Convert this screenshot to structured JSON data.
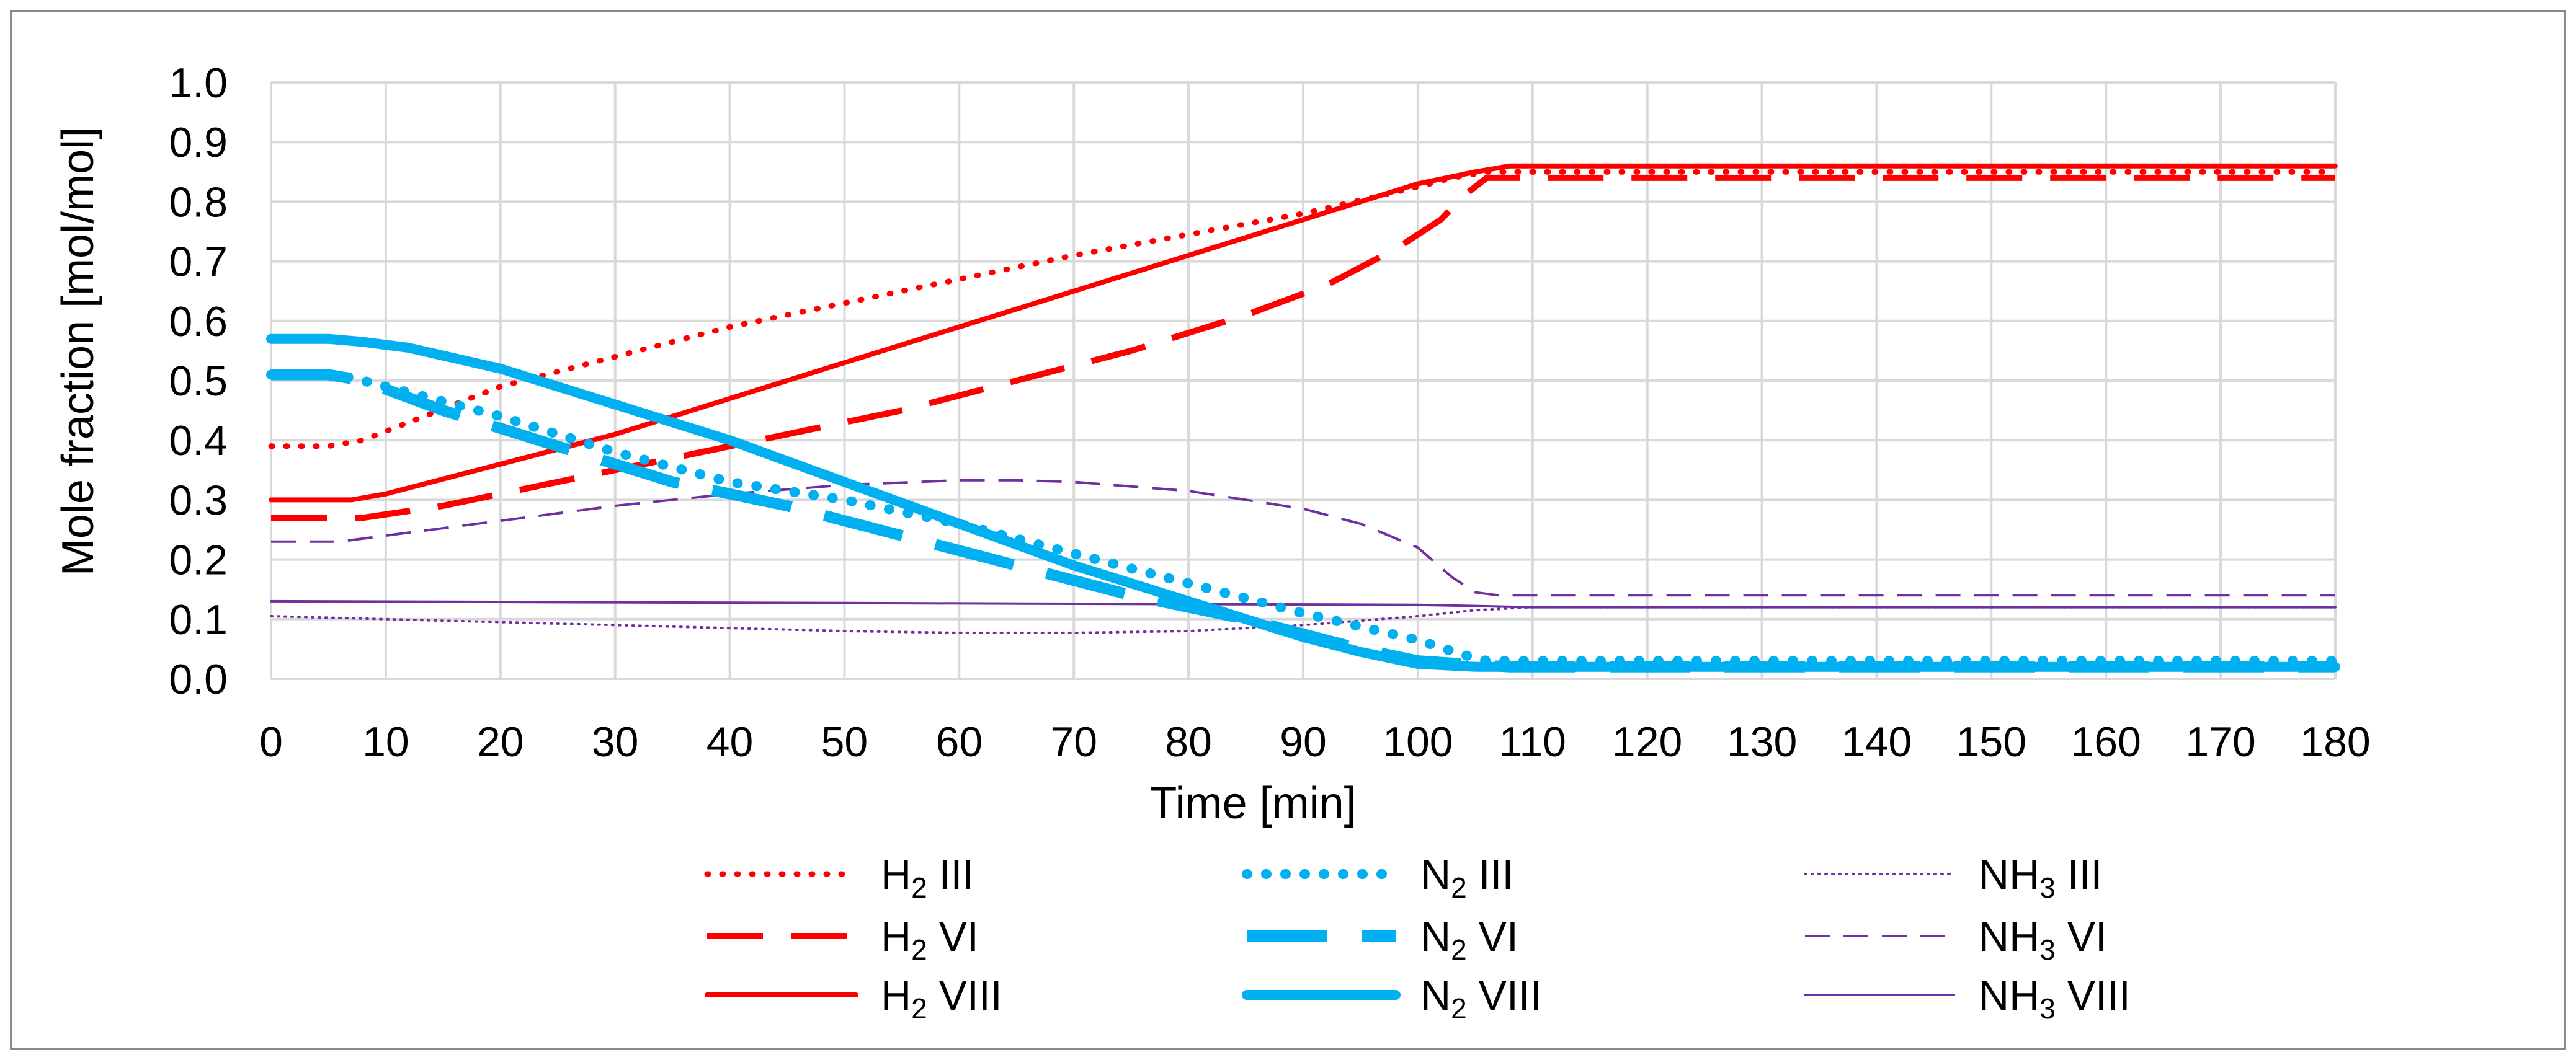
{
  "chart_data": {
    "type": "line",
    "xlabel": "Time [min]",
    "ylabel": "Mole fraction [mol/mol]",
    "xlim": [
      0,
      180
    ],
    "ylim": [
      0,
      1.0
    ],
    "xticks": [
      0,
      10,
      20,
      30,
      40,
      50,
      60,
      70,
      80,
      90,
      100,
      110,
      120,
      130,
      140,
      150,
      160,
      170,
      180
    ],
    "yticks": [
      0.0,
      0.1,
      0.2,
      0.3,
      0.4,
      0.5,
      0.6,
      0.7,
      0.8,
      0.9,
      1.0
    ],
    "grid": true,
    "legend_position": "bottom",
    "series": [
      {
        "name": "H2 III",
        "base": "H",
        "sub": "2",
        "suffix": " III",
        "color": "#ff0000",
        "style": "dotted",
        "x": [
          0,
          5,
          8,
          12,
          20,
          30,
          40,
          50,
          60,
          70,
          80,
          90,
          100,
          103,
          106,
          108,
          120,
          140,
          160,
          180
        ],
        "y": [
          0.39,
          0.39,
          0.4,
          0.43,
          0.49,
          0.54,
          0.59,
          0.63,
          0.67,
          0.71,
          0.745,
          0.78,
          0.825,
          0.84,
          0.85,
          0.85,
          0.85,
          0.85,
          0.85,
          0.85
        ]
      },
      {
        "name": "H2 VI",
        "base": "H",
        "sub": "2",
        "suffix": " VI",
        "color": "#ff0000",
        "style": "longdash",
        "x": [
          0,
          8,
          15,
          25,
          35,
          45,
          55,
          65,
          75,
          85,
          92,
          98,
          102,
          104,
          106,
          108,
          120,
          140,
          160,
          180
        ],
        "y": [
          0.27,
          0.27,
          0.29,
          0.33,
          0.37,
          0.41,
          0.45,
          0.5,
          0.55,
          0.61,
          0.66,
          0.72,
          0.77,
          0.81,
          0.84,
          0.84,
          0.84,
          0.84,
          0.84,
          0.84
        ]
      },
      {
        "name": "H2 VIII",
        "base": "H",
        "sub": "2",
        "suffix": " VIII",
        "color": "#ff0000",
        "style": "solid",
        "x": [
          0,
          7,
          10,
          20,
          30,
          40,
          50,
          60,
          70,
          80,
          90,
          100,
          105,
          108,
          120,
          140,
          160,
          180
        ],
        "y": [
          0.3,
          0.3,
          0.31,
          0.36,
          0.41,
          0.47,
          0.53,
          0.59,
          0.65,
          0.71,
          0.77,
          0.83,
          0.85,
          0.86,
          0.86,
          0.86,
          0.86,
          0.86
        ]
      },
      {
        "name": "N2 III",
        "base": "N",
        "sub": "2",
        "suffix": " III",
        "color": "#00b0f0",
        "style": "dotted",
        "x": [
          0,
          5,
          7,
          10,
          20,
          30,
          40,
          50,
          60,
          70,
          80,
          90,
          100,
          104,
          106,
          110,
          120,
          140,
          160,
          180
        ],
        "y": [
          0.51,
          0.51,
          0.505,
          0.49,
          0.44,
          0.38,
          0.33,
          0.3,
          0.26,
          0.21,
          0.16,
          0.11,
          0.065,
          0.04,
          0.03,
          0.03,
          0.03,
          0.03,
          0.03,
          0.03
        ]
      },
      {
        "name": "N2 VI",
        "base": "N",
        "sub": "2",
        "suffix": " VI",
        "color": "#00b0f0",
        "style": "longdash",
        "x": [
          0,
          5,
          8,
          15,
          25,
          35,
          45,
          55,
          65,
          75,
          85,
          95,
          100,
          104,
          108,
          120,
          140,
          160,
          180
        ],
        "y": [
          0.51,
          0.51,
          0.5,
          0.45,
          0.39,
          0.33,
          0.29,
          0.24,
          0.19,
          0.14,
          0.1,
          0.05,
          0.03,
          0.025,
          0.02,
          0.02,
          0.02,
          0.02,
          0.02
        ]
      },
      {
        "name": "N2 VIII",
        "base": "N",
        "sub": "2",
        "suffix": " VIII",
        "color": "#00b0f0",
        "style": "solid",
        "x": [
          0,
          5,
          8,
          12,
          20,
          30,
          40,
          50,
          60,
          70,
          80,
          90,
          95,
          100,
          105,
          110,
          120,
          140,
          160,
          180
        ],
        "y": [
          0.57,
          0.57,
          0.565,
          0.555,
          0.52,
          0.46,
          0.4,
          0.33,
          0.26,
          0.19,
          0.13,
          0.07,
          0.045,
          0.025,
          0.02,
          0.02,
          0.02,
          0.02,
          0.02,
          0.02
        ]
      },
      {
        "name": "NH3 III",
        "base": "NH",
        "sub": "3",
        "suffix": " III",
        "color": "#7030a0",
        "style": "fine-dotted",
        "x": [
          0,
          10,
          20,
          30,
          40,
          50,
          60,
          70,
          80,
          90,
          100,
          105,
          110,
          120,
          140,
          160,
          180
        ],
        "y": [
          0.105,
          0.1,
          0.095,
          0.09,
          0.085,
          0.08,
          0.077,
          0.077,
          0.08,
          0.09,
          0.105,
          0.115,
          0.12,
          0.12,
          0.12,
          0.12,
          0.12
        ]
      },
      {
        "name": "NH3 VI",
        "base": "NH",
        "sub": "3",
        "suffix": " VI",
        "color": "#7030a0",
        "style": "dashed",
        "x": [
          0,
          6,
          10,
          20,
          30,
          40,
          50,
          60,
          65,
          70,
          80,
          85,
          90,
          95,
          100,
          103,
          105,
          107,
          110,
          120,
          140,
          160,
          180
        ],
        "y": [
          0.23,
          0.23,
          0.24,
          0.265,
          0.29,
          0.31,
          0.325,
          0.333,
          0.333,
          0.33,
          0.315,
          0.3,
          0.285,
          0.26,
          0.22,
          0.17,
          0.145,
          0.14,
          0.14,
          0.14,
          0.14,
          0.14,
          0.14
        ]
      },
      {
        "name": "NH3 VIII",
        "base": "NH",
        "sub": "3",
        "suffix": " VIII",
        "color": "#7030a0",
        "style": "thin-solid",
        "x": [
          0,
          50,
          100,
          105,
          110,
          120,
          140,
          160,
          180
        ],
        "y": [
          0.13,
          0.127,
          0.124,
          0.122,
          0.12,
          0.12,
          0.12,
          0.12,
          0.12
        ]
      }
    ]
  }
}
